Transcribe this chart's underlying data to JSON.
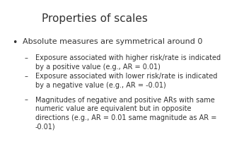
{
  "title": "Properties of scales",
  "title_fontsize": 11,
  "background_color": "#ffffff",
  "text_color": "#333333",
  "bullet_text": "Absolute measures are symmetrical around 0",
  "bullet_fontsize": 8.0,
  "sub_bullet_fontsize": 7.0,
  "font_family": "DejaVu Sans",
  "sub_bullets": [
    "Exposure associated with higher risk/rate is indicated\nby a positive value (e.g., AR = 0.01)",
    "Exposure associated with lower risk/rate is indicated\nby a negative value (e.g., AR = -0.01)",
    "Magnitudes of negative and positive ARs with same\nnumeric value are equivalent but in opposite\ndirections (e.g., AR = 0.01 same magnitude as AR =\n-0.01)"
  ]
}
